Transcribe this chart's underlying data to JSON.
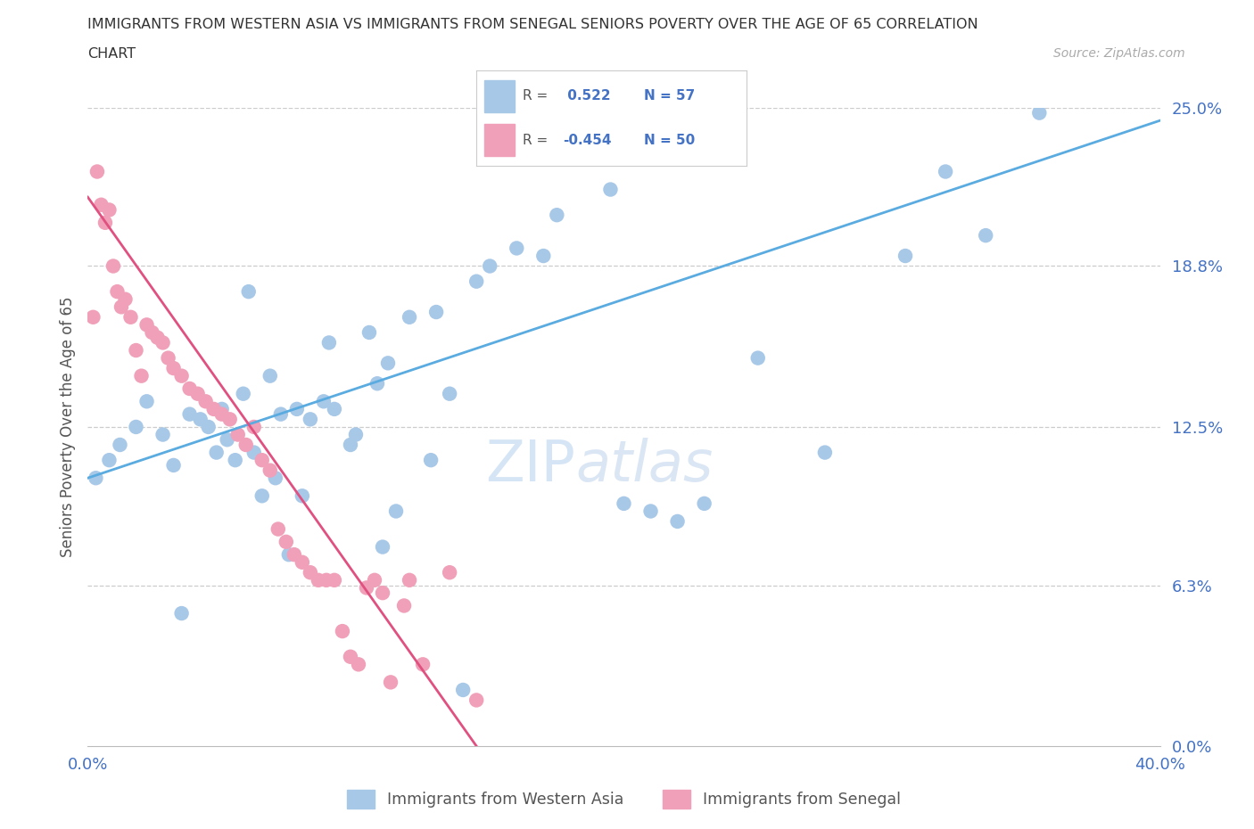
{
  "title_line1": "IMMIGRANTS FROM WESTERN ASIA VS IMMIGRANTS FROM SENEGAL SENIORS POVERTY OVER THE AGE OF 65 CORRELATION",
  "title_line2": "CHART",
  "source": "Source: ZipAtlas.com",
  "ylabel": "Seniors Poverty Over the Age of 65",
  "ytick_labels": [
    "0.0%",
    "6.3%",
    "12.5%",
    "18.8%",
    "25.0%"
  ],
  "ytick_values": [
    0.0,
    6.3,
    12.5,
    18.8,
    25.0
  ],
  "xlim": [
    0.0,
    40.0
  ],
  "ylim": [
    0.0,
    25.0
  ],
  "r_blue": 0.522,
  "n_blue": 57,
  "r_pink": -0.454,
  "n_pink": 50,
  "color_blue": "#a8c8e8",
  "color_pink": "#f0a0b8",
  "line_blue": "#5aabe0",
  "line_pink": "#e05080",
  "watermark_color": "#c0d8f0",
  "legend_text_color": "#4472c4",
  "blue_scatter_x": [
    0.3,
    0.8,
    1.2,
    1.8,
    2.2,
    2.8,
    3.2,
    3.8,
    4.2,
    4.8,
    5.2,
    5.8,
    6.2,
    6.8,
    7.2,
    7.8,
    8.3,
    9.0,
    9.8,
    10.5,
    11.2,
    12.0,
    13.0,
    14.5,
    16.0,
    17.5,
    19.5,
    21.0,
    23.0,
    25.0,
    27.5,
    30.5,
    32.0,
    33.5,
    35.5,
    4.5,
    5.5,
    6.5,
    7.5,
    8.8,
    10.0,
    11.5,
    13.5,
    15.0,
    17.0,
    20.0,
    22.0,
    3.5,
    5.0,
    7.0,
    9.2,
    11.0,
    6.0,
    8.0,
    10.8,
    12.8,
    14.0
  ],
  "blue_scatter_y": [
    10.5,
    11.2,
    11.8,
    12.5,
    13.5,
    12.2,
    11.0,
    13.0,
    12.8,
    11.5,
    12.0,
    13.8,
    11.5,
    14.5,
    13.0,
    13.2,
    12.8,
    15.8,
    11.8,
    16.2,
    15.0,
    16.8,
    17.0,
    18.2,
    19.5,
    20.8,
    21.8,
    9.2,
    9.5,
    15.2,
    11.5,
    19.2,
    22.5,
    20.0,
    24.8,
    12.5,
    11.2,
    9.8,
    7.5,
    13.5,
    12.2,
    9.2,
    13.8,
    18.8,
    19.2,
    9.5,
    8.8,
    5.2,
    13.2,
    10.5,
    13.2,
    7.8,
    17.8,
    9.8,
    14.2,
    11.2,
    2.2
  ],
  "pink_scatter_x": [
    0.2,
    0.35,
    0.5,
    0.65,
    0.8,
    0.95,
    1.1,
    1.25,
    1.4,
    1.6,
    1.8,
    2.0,
    2.2,
    2.4,
    2.6,
    2.8,
    3.0,
    3.2,
    3.5,
    3.8,
    4.1,
    4.4,
    4.7,
    5.0,
    5.3,
    5.6,
    5.9,
    6.2,
    6.5,
    6.8,
    7.1,
    7.4,
    7.7,
    8.0,
    8.3,
    8.6,
    8.9,
    9.2,
    9.5,
    9.8,
    10.1,
    10.4,
    10.7,
    11.0,
    11.3,
    11.8,
    12.0,
    12.5,
    13.5,
    14.5
  ],
  "pink_scatter_y": [
    16.8,
    22.5,
    21.2,
    20.5,
    21.0,
    18.8,
    17.8,
    17.2,
    17.5,
    16.8,
    15.5,
    14.5,
    16.5,
    16.2,
    16.0,
    15.8,
    15.2,
    14.8,
    14.5,
    14.0,
    13.8,
    13.5,
    13.2,
    13.0,
    12.8,
    12.2,
    11.8,
    12.5,
    11.2,
    10.8,
    8.5,
    8.0,
    7.5,
    7.2,
    6.8,
    6.5,
    6.5,
    6.5,
    4.5,
    3.5,
    3.2,
    6.2,
    6.5,
    6.0,
    2.5,
    5.5,
    6.5,
    3.2,
    6.8,
    1.8
  ],
  "blue_line_x0": 0.0,
  "blue_line_y0": 10.5,
  "blue_line_x1": 40.0,
  "blue_line_y1": 24.5,
  "pink_line_x0": 0.0,
  "pink_line_y0": 21.5,
  "pink_line_x1": 14.5,
  "pink_line_y1": 0.0
}
